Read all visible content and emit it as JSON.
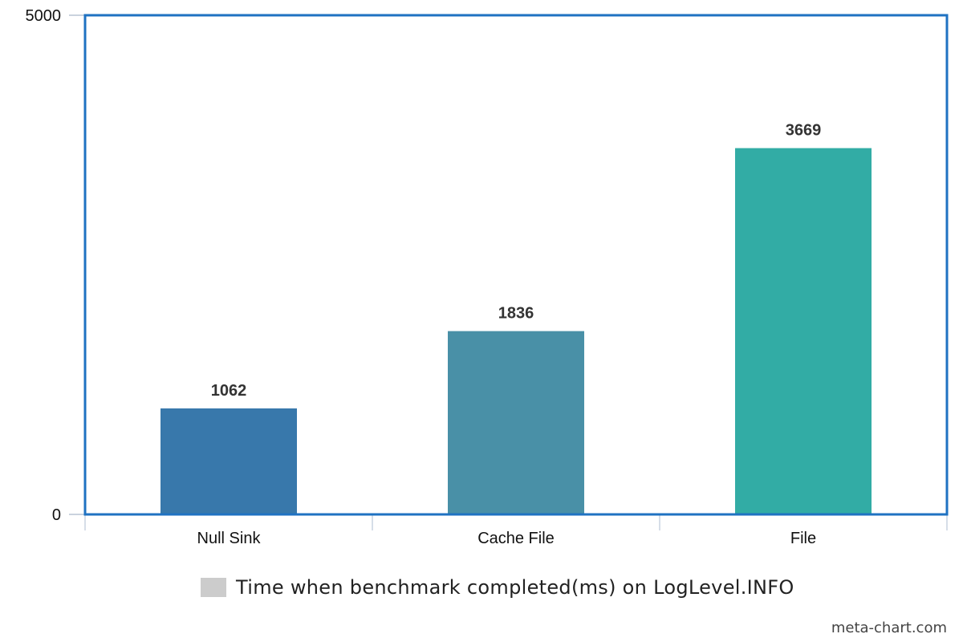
{
  "chart_data": {
    "type": "bar",
    "categories": [
      "Null Sink",
      "Cache File",
      "File"
    ],
    "series": [
      {
        "name": "Time when benchmark completed(ms) on LogLevel.INFO",
        "values": [
          1062,
          1836,
          3669
        ],
        "colors": [
          "#3878ab",
          "#4990a7",
          "#32aca5"
        ]
      }
    ],
    "ylim": [
      0,
      5000
    ],
    "yticks": [
      0,
      5000
    ],
    "xlabel": "",
    "ylabel": "",
    "grid": false,
    "legend_position": "bottom-center",
    "frame_color": "#1f72c2",
    "legend_swatch_color": "#cccccc"
  },
  "legend": {
    "label": "Time when benchmark completed(ms) on LogLevel.INFO"
  },
  "credit": "meta-chart.com"
}
